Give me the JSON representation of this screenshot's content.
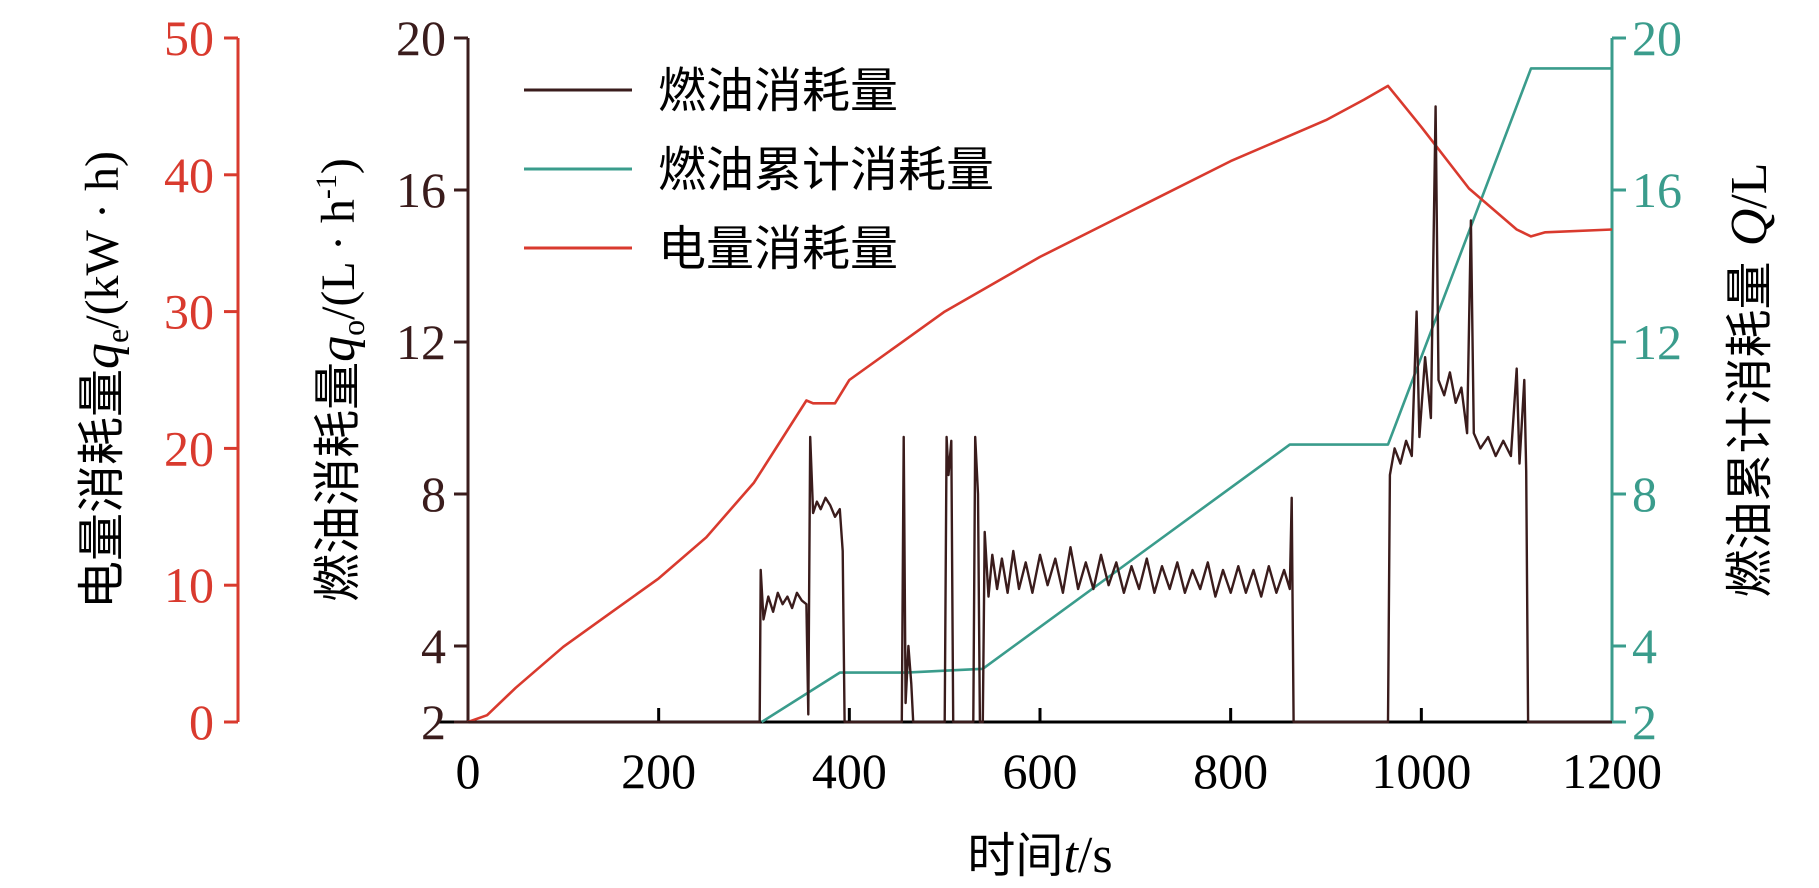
{
  "colors": {
    "fuel": "#3a1c1c",
    "cumulative": "#3a9c8c",
    "electric": "#d93a2e",
    "axis": "#000000"
  },
  "chart_data": {
    "type": "line",
    "x_axis": {
      "label_prefix": "时间",
      "label_var": "t",
      "label_unit": "/s",
      "range": [
        0,
        1200
      ],
      "ticks": [
        "0",
        "200",
        "400",
        "600",
        "800",
        "1000",
        "1200"
      ]
    },
    "y_axes": {
      "electric": {
        "label_prefix": "电量消耗量",
        "label_var": "q",
        "label_sub": "e",
        "label_unit": "/(kW · h)",
        "range": [
          0,
          50
        ],
        "ticks": [
          "0",
          "10",
          "20",
          "30",
          "40",
          "50"
        ],
        "side": "left-outer"
      },
      "fuel_rate": {
        "label_prefix": "燃油消耗量",
        "label_var": "q",
        "label_sub": "o",
        "label_unit": "/(L · h",
        "label_sup": "-1",
        "label_end": ")",
        "range": [
          2,
          20
        ],
        "ticks": [
          "2",
          "4",
          "8",
          "12",
          "16",
          "20"
        ],
        "side": "left-inner"
      },
      "fuel_cumulative": {
        "label_prefix": "燃油累计消耗量",
        "label_var": "Q",
        "label_unit": "/L",
        "range": [
          2,
          20
        ],
        "ticks": [
          "2",
          "4",
          "8",
          "12",
          "16",
          "20"
        ],
        "side": "right"
      }
    },
    "legend": {
      "position": "top-left",
      "entries": [
        "燃油消耗量",
        "燃油累计消耗量",
        "电量消耗量"
      ]
    },
    "series": [
      {
        "name": "燃油消耗量",
        "axis": "fuel_rate",
        "points": [
          [
            0,
            2
          ],
          [
            306,
            2
          ],
          [
            307,
            6
          ],
          [
            310,
            4.7
          ],
          [
            315,
            5.3
          ],
          [
            320,
            4.9
          ],
          [
            325,
            5.4
          ],
          [
            330,
            5.1
          ],
          [
            335,
            5.3
          ],
          [
            340,
            5.0
          ],
          [
            345,
            5.4
          ],
          [
            350,
            5.2
          ],
          [
            355,
            5.1
          ],
          [
            357,
            2.2
          ],
          [
            359,
            9.5
          ],
          [
            362,
            7.5
          ],
          [
            366,
            7.8
          ],
          [
            370,
            7.6
          ],
          [
            375,
            7.9
          ],
          [
            380,
            7.7
          ],
          [
            385,
            7.4
          ],
          [
            390,
            7.6
          ],
          [
            393,
            6.5
          ],
          [
            395,
            2
          ],
          [
            455,
            2
          ],
          [
            457,
            9.5
          ],
          [
            459,
            2.5
          ],
          [
            462,
            4
          ],
          [
            465,
            3
          ],
          [
            467,
            2
          ],
          [
            500,
            2
          ],
          [
            502,
            9.5
          ],
          [
            504,
            8.5
          ],
          [
            507,
            9.4
          ],
          [
            509,
            2
          ],
          [
            530,
            2
          ],
          [
            532,
            9.5
          ],
          [
            535,
            8
          ],
          [
            537,
            2
          ],
          [
            540,
            2
          ],
          [
            542,
            7
          ],
          [
            546,
            5.3
          ],
          [
            550,
            6.4
          ],
          [
            555,
            5.5
          ],
          [
            560,
            6.3
          ],
          [
            566,
            5.4
          ],
          [
            572,
            6.5
          ],
          [
            578,
            5.5
          ],
          [
            585,
            6.2
          ],
          [
            592,
            5.4
          ],
          [
            600,
            6.4
          ],
          [
            608,
            5.6
          ],
          [
            616,
            6.3
          ],
          [
            624,
            5.4
          ],
          [
            632,
            6.6
          ],
          [
            640,
            5.5
          ],
          [
            648,
            6.2
          ],
          [
            656,
            5.5
          ],
          [
            664,
            6.4
          ],
          [
            672,
            5.6
          ],
          [
            680,
            6.2
          ],
          [
            688,
            5.4
          ],
          [
            696,
            6.1
          ],
          [
            704,
            5.5
          ],
          [
            712,
            6.3
          ],
          [
            720,
            5.4
          ],
          [
            728,
            6.1
          ],
          [
            736,
            5.5
          ],
          [
            744,
            6.2
          ],
          [
            752,
            5.4
          ],
          [
            760,
            6.0
          ],
          [
            768,
            5.5
          ],
          [
            776,
            6.2
          ],
          [
            784,
            5.3
          ],
          [
            792,
            6.0
          ],
          [
            800,
            5.4
          ],
          [
            808,
            6.1
          ],
          [
            816,
            5.4
          ],
          [
            824,
            6.0
          ],
          [
            832,
            5.3
          ],
          [
            840,
            6.1
          ],
          [
            848,
            5.4
          ],
          [
            856,
            6.0
          ],
          [
            862,
            5.5
          ],
          [
            864,
            7.9
          ],
          [
            866,
            2
          ],
          [
            965,
            2
          ],
          [
            967,
            8.5
          ],
          [
            972,
            9.2
          ],
          [
            978,
            8.8
          ],
          [
            984,
            9.4
          ],
          [
            990,
            9.0
          ],
          [
            995,
            12.8
          ],
          [
            998,
            9.5
          ],
          [
            1004,
            11.6
          ],
          [
            1010,
            10.0
          ],
          [
            1015,
            18.2
          ],
          [
            1018,
            11.0
          ],
          [
            1024,
            10.6
          ],
          [
            1030,
            11.2
          ],
          [
            1036,
            10.4
          ],
          [
            1042,
            10.8
          ],
          [
            1048,
            9.6
          ],
          [
            1052,
            15.2
          ],
          [
            1055,
            9.6
          ],
          [
            1062,
            9.2
          ],
          [
            1070,
            9.5
          ],
          [
            1078,
            9.0
          ],
          [
            1086,
            9.4
          ],
          [
            1094,
            9.0
          ],
          [
            1100,
            11.3
          ],
          [
            1103,
            8.8
          ],
          [
            1108,
            11.0
          ],
          [
            1110,
            8.6
          ],
          [
            1112,
            2
          ],
          [
            1200,
            2
          ]
        ]
      },
      {
        "name": "燃油累计消耗量",
        "axis": "fuel_cumulative",
        "points": [
          [
            308,
            2
          ],
          [
            390,
            3.3
          ],
          [
            460,
            3.3
          ],
          [
            540,
            3.4
          ],
          [
            862,
            9.3
          ],
          [
            965,
            9.3
          ],
          [
            1115,
            19.2
          ],
          [
            1200,
            19.2
          ]
        ]
      },
      {
        "name": "电量消耗量",
        "axis": "electric",
        "points": [
          [
            0,
            0
          ],
          [
            20,
            0.5
          ],
          [
            50,
            2.5
          ],
          [
            100,
            5.5
          ],
          [
            150,
            8
          ],
          [
            200,
            10.5
          ],
          [
            250,
            13.5
          ],
          [
            300,
            17.5
          ],
          [
            355,
            23.5
          ],
          [
            362,
            23.3
          ],
          [
            385,
            23.3
          ],
          [
            400,
            25
          ],
          [
            450,
            27.5
          ],
          [
            500,
            30
          ],
          [
            600,
            34
          ],
          [
            700,
            37.5
          ],
          [
            800,
            41
          ],
          [
            900,
            44
          ],
          [
            940,
            45.5
          ],
          [
            965,
            46.5
          ],
          [
            1000,
            43.5
          ],
          [
            1050,
            39
          ],
          [
            1100,
            36
          ],
          [
            1115,
            35.5
          ],
          [
            1130,
            35.8
          ],
          [
            1200,
            36
          ]
        ]
      }
    ],
    "grid": false
  }
}
